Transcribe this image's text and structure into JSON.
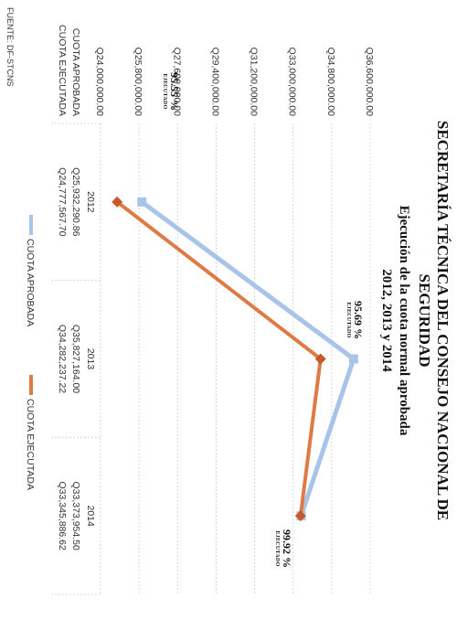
{
  "header": {
    "title": "SECRETARÍA TÉCNICA DEL CONSEJO NACIONAL DE",
    "subtitle": "SEGURIDAD",
    "subtitle2": "Ejecución de la cuota normal aprobada",
    "subtitle3": "2012, 2013 y 2014"
  },
  "chart_data": {
    "type": "line",
    "x": [
      "2012",
      "2013",
      "2014"
    ],
    "ytick_labels": [
      "Q24,000,000.00",
      "Q25,800,000.00",
      "Q27,600,000.00",
      "Q29,400,000.00",
      "Q31,200,000.00",
      "Q33,000,000.00",
      "Q34,800,000.00",
      "Q36,600,000.00"
    ],
    "ylim": [
      24000000,
      36600000
    ],
    "grid": true,
    "legend_position": "bottom",
    "series": [
      {
        "name": "CUOTA APROBADA",
        "color": "#a9c4ea",
        "values": [
          25932290.86,
          35827164.0,
          33373954.5
        ],
        "value_labels": [
          "Q25,932,290.86",
          "Q35,827,164.00",
          "Q33,373,954.50"
        ]
      },
      {
        "name": "CUOTA EJECUTADA",
        "color": "#e07a45",
        "values": [
          24777567.7,
          34282237.22,
          33345886.62
        ],
        "value_labels": [
          "Q24,777,567.70",
          "Q34,282,237.22",
          "Q33,345,886.62"
        ]
      }
    ],
    "annotations": [
      {
        "x": "2012",
        "value": "95.55 %",
        "label": "EJECUTADO"
      },
      {
        "x": "2013",
        "value": "95.69 %",
        "label": "EJECUTADO"
      },
      {
        "x": "2014",
        "value": "99.92 %",
        "label": "EJECUTADO"
      }
    ]
  },
  "footer": {
    "source": "FUENTE: DF-STCNS"
  }
}
